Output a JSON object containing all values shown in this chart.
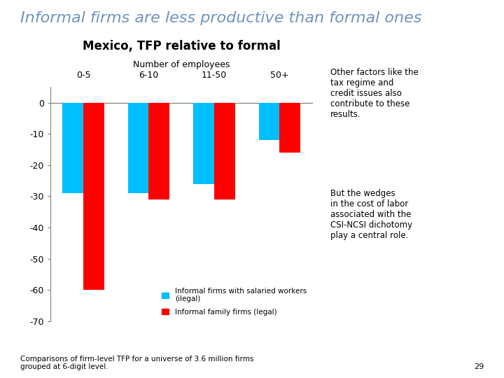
{
  "title_main": "Informal firms are less productive than formal ones",
  "subtitle": "Mexico, TFP relative to formal",
  "xlabel": "Number of employees",
  "categories": [
    "0-5",
    "6-10",
    "11-50",
    "50+"
  ],
  "blue_values": [
    -29,
    -29,
    -26,
    -12
  ],
  "red_values": [
    -60,
    -31,
    -31,
    -16
  ],
  "blue_color": "#00BFFF",
  "red_color": "#FF0000",
  "ylim": [
    -70,
    5
  ],
  "yticks": [
    0,
    -10,
    -20,
    -30,
    -40,
    -50,
    -60,
    -70
  ],
  "legend_blue": "Informal firms with salaried workers\n(ilegal)",
  "legend_red": "Informal family firms (legal)",
  "footnote": "Comparisons of firm-level TFP for a universe of 3.6 million firms\ngrouped at 6-digit level.",
  "page_number": "29",
  "annotation1": "Other factors like the\ntax regime and\ncredit issues also\ncontribute to these\nresults.",
  "annotation2": "But the wedges\nin the cost of labor\nassociated with the\nCSI-NCSI dichotomy\nplay a central role.",
  "title_color": "#7094BB",
  "title_fontsize": 16,
  "subtitle_fontsize": 12,
  "bar_width": 0.32
}
